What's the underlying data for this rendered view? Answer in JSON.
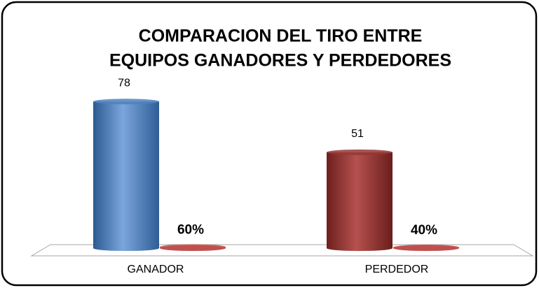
{
  "chart_data": {
    "type": "bar3d",
    "title": [
      "COMPARACION DEL TIRO ENTRE",
      "EQUIPOS GANADORES Y PERDEDORES"
    ],
    "categories": [
      "GANADOR",
      "PERDEDOR"
    ],
    "series": [
      {
        "values": [
          78,
          51
        ],
        "colors": [
          "#4f81bd",
          "#953735"
        ]
      },
      {
        "values": [
          0.6,
          0.4
        ],
        "value_labels": [
          "60%",
          "40%"
        ],
        "color": "#c0504d"
      }
    ],
    "ylim": [
      0,
      90
    ]
  }
}
